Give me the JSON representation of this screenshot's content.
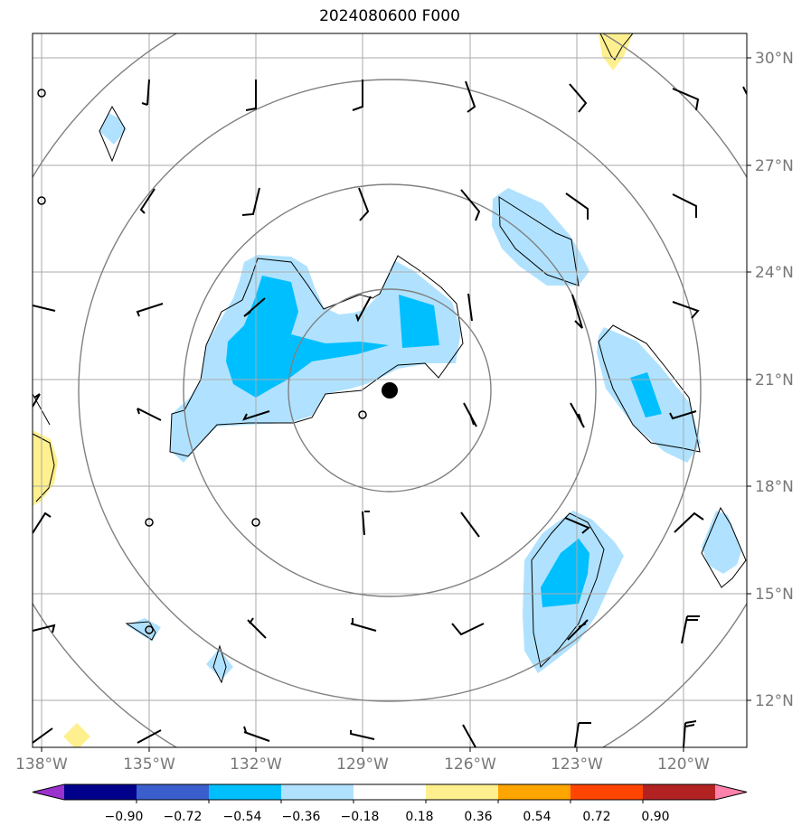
{
  "title": "2024080600 F000",
  "lat_labels": [
    "30°N",
    "27°N",
    "24°N",
    "21°N",
    "18°N",
    "15°N",
    "12°N"
  ],
  "lon_labels": [
    "138°W",
    "135°W",
    "132°W",
    "129°W",
    "126°W",
    "123°W",
    "120°W"
  ],
  "colorbar": {
    "ticks": [
      "−0.90",
      "−0.72",
      "−0.54",
      "−0.36",
      "−0.18",
      "0.18",
      "0.36",
      "0.54",
      "0.72",
      "0.90"
    ],
    "colors": [
      "#9a32cd",
      "#00008b",
      "#3a5fcd",
      "#00bfff",
      "#b0e2ff",
      "#ffffff",
      "#fff08f",
      "#ffa500",
      "#ff4500",
      "#b22222",
      "#ff82ab"
    ]
  },
  "colors": {
    "light_blue": "#b0e2ff",
    "deep_sky_blue": "#00bfff",
    "light_yellow": "#fff08f",
    "grid": "#aaaaaa",
    "range_ring": "#808080"
  },
  "storm_center": {
    "lon": -128.3,
    "lat": 20.7
  },
  "range_rings": "concentric circles around storm center",
  "wind_barbs": "station wind barbs on 3° grid"
}
